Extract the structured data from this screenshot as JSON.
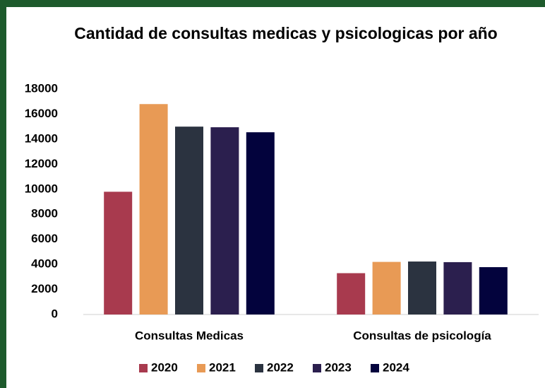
{
  "chart_data": {
    "type": "bar",
    "title": "Cantidad de consultas medicas y psicologicas por año",
    "categories": [
      "Consultas Medicas",
      "Consultas de psicología"
    ],
    "series": [
      {
        "name": "2020",
        "color": "#a83a4e",
        "values": [
          9800,
          3300
        ]
      },
      {
        "name": "2021",
        "color": "#e89a55",
        "values": [
          16800,
          4200
        ]
      },
      {
        "name": "2022",
        "color": "#2b3340",
        "values": [
          15000,
          4230
        ]
      },
      {
        "name": "2023",
        "color": "#2b1f4e",
        "values": [
          14950,
          4180
        ]
      },
      {
        "name": "2024",
        "color": "#03033d",
        "values": [
          14550,
          3780
        ]
      }
    ],
    "ylim": [
      0,
      18000
    ],
    "yticks": [
      0,
      2000,
      4000,
      6000,
      8000,
      10000,
      12000,
      14000,
      16000,
      18000
    ],
    "grid": false,
    "legend": "bottom"
  }
}
